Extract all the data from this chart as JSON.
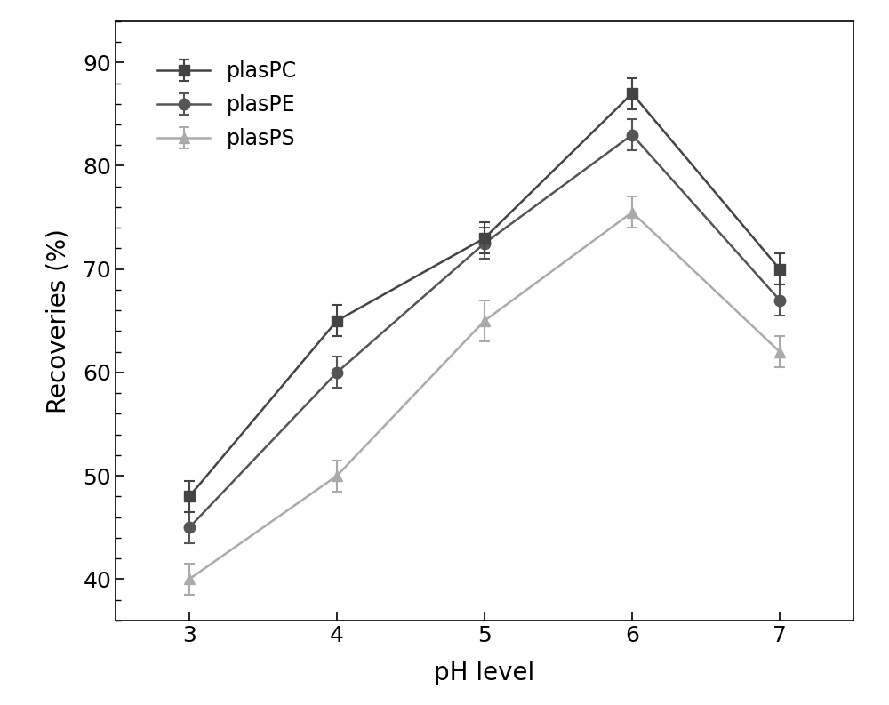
{
  "x": [
    3,
    4,
    5,
    6,
    7
  ],
  "plasPC": [
    48,
    65,
    73,
    87,
    70
  ],
  "plasPE": [
    45,
    60,
    72.5,
    83,
    67
  ],
  "plasPS": [
    40,
    50,
    65,
    75.5,
    62
  ],
  "plasPC_err": [
    1.5,
    1.5,
    1.5,
    1.5,
    1.5
  ],
  "plasPE_err": [
    1.5,
    1.5,
    1.5,
    1.5,
    1.5
  ],
  "plasPS_err": [
    1.5,
    1.5,
    2.0,
    1.5,
    1.5
  ],
  "plasPC_color": "#444444",
  "plasPE_color": "#555555",
  "plasPS_color": "#aaaaaa",
  "xlabel": "pH level",
  "ylabel": "Recoveries (%)",
  "xlim": [
    2.5,
    7.5
  ],
  "ylim": [
    36,
    94
  ],
  "yticks": [
    40,
    50,
    60,
    70,
    80,
    90
  ],
  "xticks": [
    3,
    4,
    5,
    6,
    7
  ],
  "legend_labels": [
    "plasPC",
    "plasPE",
    "plasPS"
  ],
  "background_color": "#ffffff",
  "xlabel_fontsize": 20,
  "ylabel_fontsize": 20,
  "tick_fontsize": 18,
  "legend_fontsize": 17
}
